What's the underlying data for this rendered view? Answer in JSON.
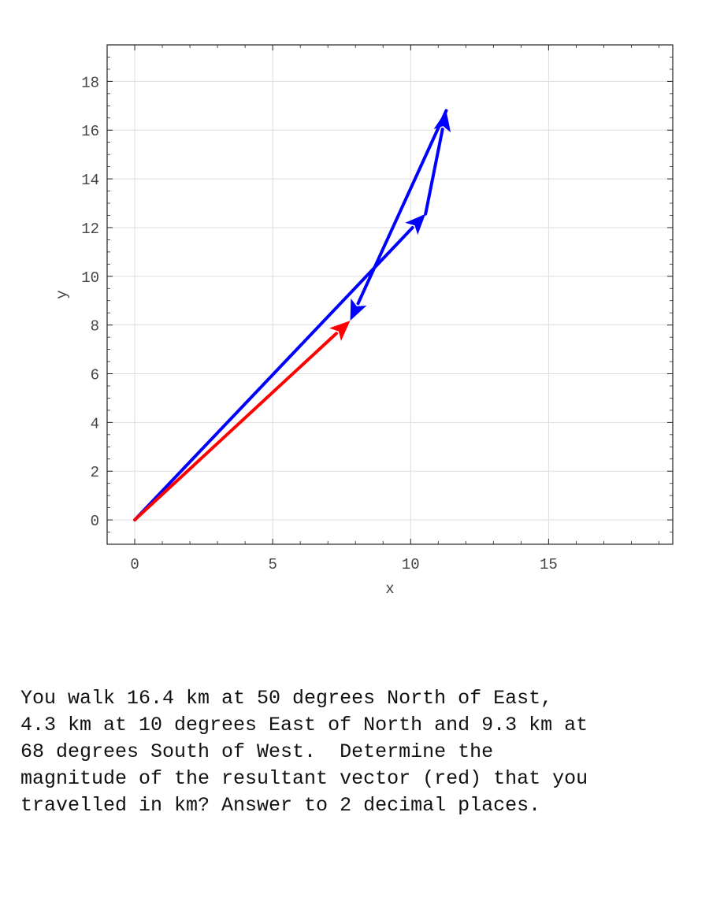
{
  "chart_data": {
    "type": "vector-plot",
    "xlabel": "x",
    "ylabel": "y",
    "xlim": [
      -1,
      19.5
    ],
    "ylim": [
      -1,
      19.5
    ],
    "xticks": [
      0,
      5,
      10,
      15
    ],
    "yticks": [
      0,
      2,
      4,
      6,
      8,
      10,
      12,
      14,
      16,
      18
    ],
    "grid": true,
    "vectors": [
      {
        "from": [
          0,
          0
        ],
        "to": [
          10.54,
          12.56
        ],
        "color": "#0000ff",
        "kind": "component"
      },
      {
        "from": [
          10.54,
          12.56
        ],
        "to": [
          11.29,
          16.8
        ],
        "color": "#0000ff",
        "kind": "component"
      },
      {
        "from": [
          11.29,
          16.8
        ],
        "to": [
          7.81,
          8.18
        ],
        "color": "#0000ff",
        "kind": "component"
      },
      {
        "from": [
          0,
          0
        ],
        "to": [
          7.81,
          8.18
        ],
        "color": "#ff0000",
        "kind": "resultant"
      }
    ]
  },
  "question": {
    "lines": [
      "You walk 16.4 km at 50 degrees North of East,",
      "4.3 km at 10 degrees East of North and 9.3 km at",
      "68 degrees South of West.  Determine the",
      "magnitude of the resultant vector (red) that you",
      "travelled in km? Answer to 2 decimal places."
    ]
  }
}
